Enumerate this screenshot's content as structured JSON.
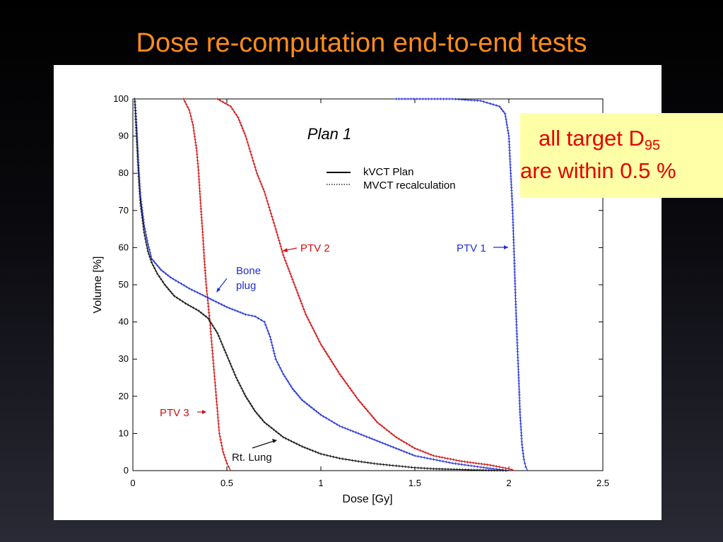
{
  "slide": {
    "title": "Dose re-computation end-to-end tests",
    "callout": {
      "line1_text": "all target D",
      "line1_subscript": "95",
      "line2_text": "are within 0.5 %",
      "bg_color": "#ffffa8",
      "text_color": "#e60000"
    },
    "title_color": "#ff8c1a"
  },
  "chart_data": {
    "type": "line",
    "title": "Plan 1",
    "xlabel": "Dose [Gy]",
    "ylabel": "Volume [%]",
    "xlim": [
      0,
      2.5
    ],
    "ylim": [
      0,
      100
    ],
    "xticks": [
      0,
      0.5,
      1,
      1.5,
      2,
      2.5
    ],
    "xtick_labels": [
      "0",
      "0.5",
      "1",
      "1.5",
      "2",
      "2.5"
    ],
    "yticks": [
      0,
      10,
      20,
      30,
      40,
      50,
      60,
      70,
      80,
      90,
      100
    ],
    "ytick_labels": [
      "0",
      "10",
      "20",
      "30",
      "40",
      "50",
      "60",
      "70",
      "80",
      "90",
      "100"
    ],
    "grid": false,
    "legend": {
      "placement": "top-center",
      "entries": [
        {
          "label": "kVCT Plan",
          "style": "solid"
        },
        {
          "label": "MVCT recalculation",
          "style": "dotted"
        }
      ]
    },
    "series": [
      {
        "name": "PTV 1",
        "color": "#1f2fd0",
        "x": [
          1.4,
          1.7,
          1.85,
          1.95,
          1.98,
          2.0,
          2.01,
          2.02,
          2.03,
          2.04,
          2.05,
          2.06,
          2.07,
          2.08,
          2.09,
          2.1
        ],
        "y": [
          100,
          100,
          99.5,
          98,
          96,
          90,
          80,
          70,
          55,
          40,
          28,
          15,
          7,
          3,
          1,
          0
        ]
      },
      {
        "name": "PTV 2",
        "color": "#cc1111",
        "x": [
          0.45,
          0.52,
          0.56,
          0.6,
          0.63,
          0.66,
          0.7,
          0.73,
          0.76,
          0.8,
          0.86,
          0.92,
          1.0,
          1.1,
          1.2,
          1.3,
          1.4,
          1.5,
          1.6,
          1.75,
          1.9,
          2.0,
          2.03
        ],
        "y": [
          100,
          98,
          95,
          90,
          85,
          80,
          75,
          70,
          65,
          58,
          50,
          42,
          34,
          26,
          19,
          13,
          9,
          6,
          4,
          2.5,
          1.5,
          0.5,
          0
        ]
      },
      {
        "name": "PTV 3",
        "color": "#cc1111",
        "x": [
          0.27,
          0.3,
          0.32,
          0.34,
          0.35,
          0.36,
          0.37,
          0.38,
          0.39,
          0.4,
          0.41,
          0.42,
          0.43,
          0.44,
          0.45,
          0.46,
          0.48,
          0.5,
          0.52
        ],
        "y": [
          100,
          97,
          93,
          86,
          80,
          72,
          65,
          57,
          50,
          45,
          40,
          34,
          28,
          22,
          16,
          10,
          5,
          2,
          0
        ]
      },
      {
        "name": "Bone plug",
        "color": "#1f2fd0",
        "x": [
          0.01,
          0.02,
          0.03,
          0.04,
          0.06,
          0.08,
          0.1,
          0.15,
          0.2,
          0.3,
          0.4,
          0.5,
          0.6,
          0.65,
          0.7,
          0.73,
          0.76,
          0.8,
          0.85,
          0.9,
          1.0,
          1.1,
          1.2,
          1.3,
          1.4,
          1.5,
          1.6,
          1.7,
          1.8,
          1.9,
          2.0
        ],
        "y": [
          100,
          92,
          82,
          74,
          66,
          61,
          57,
          54,
          52,
          49,
          46.5,
          44,
          42,
          41.5,
          40,
          36,
          30,
          26,
          22,
          19,
          15,
          12,
          10,
          8,
          6,
          4,
          3,
          2,
          1.3,
          0.6,
          0
        ]
      },
      {
        "name": "Rt. Lung",
        "color": "#111111",
        "x": [
          0.01,
          0.02,
          0.03,
          0.04,
          0.06,
          0.08,
          0.1,
          0.13,
          0.17,
          0.22,
          0.28,
          0.35,
          0.4,
          0.45,
          0.5,
          0.55,
          0.6,
          0.65,
          0.7,
          0.8,
          0.9,
          1.0,
          1.1,
          1.2,
          1.3,
          1.4,
          1.5,
          1.6,
          1.8,
          2.0
        ],
        "y": [
          100,
          90,
          80,
          72,
          64,
          59,
          56,
          53,
          50,
          47,
          45,
          43,
          41,
          37,
          31,
          25,
          20,
          16,
          13,
          9,
          6.5,
          4.5,
          3.3,
          2.5,
          1.8,
          1.3,
          0.8,
          0.5,
          0.2,
          0
        ]
      }
    ],
    "annotations": [
      {
        "id": "ptv1",
        "text": "PTV 1",
        "color": "#1f2fd0"
      },
      {
        "id": "ptv2",
        "text": "PTV 2",
        "color": "#cc1111"
      },
      {
        "id": "ptv3",
        "text": "PTV 3",
        "color": "#cc1111"
      },
      {
        "id": "bone_line1",
        "text": "Bone",
        "color": "#1f2fd0"
      },
      {
        "id": "bone_line2",
        "text": "plug",
        "color": "#1f2fd0"
      },
      {
        "id": "lung",
        "text": "Rt. Lung",
        "color": "#111111"
      }
    ]
  }
}
